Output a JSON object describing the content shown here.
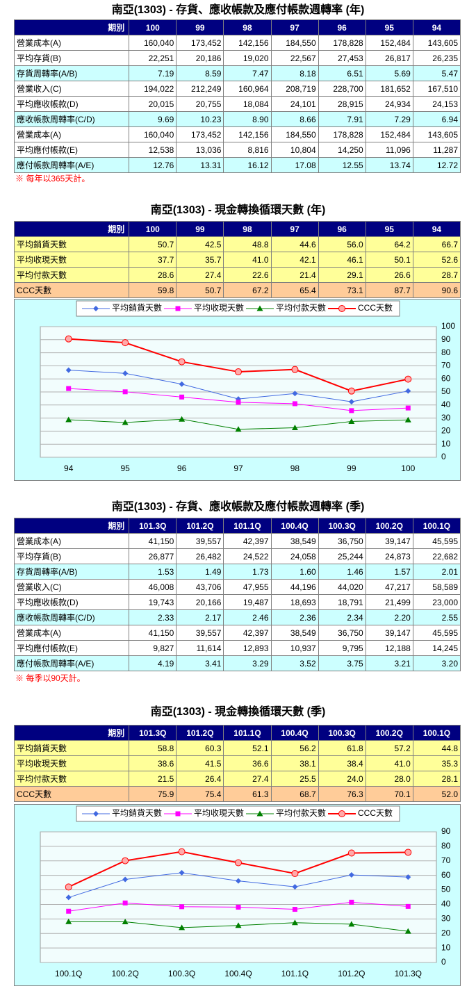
{
  "sections": [
    {
      "title": "南亞(1303) - 存貨、應收帳款及應付帳款週轉率 (年)",
      "table": {
        "header_color": "#000080",
        "header": [
          "期別",
          "100",
          "99",
          "98",
          "97",
          "96",
          "95",
          "94"
        ],
        "rows": [
          {
            "label": "營業成本(A)",
            "color": "#ffffff",
            "cells": [
              "160,040",
              "173,452",
              "142,156",
              "184,550",
              "178,828",
              "152,484",
              "143,605"
            ]
          },
          {
            "label": "平均存貨(B)",
            "color": "#ffffff",
            "cells": [
              "22,251",
              "20,186",
              "19,020",
              "22,567",
              "27,453",
              "26,817",
              "26,235"
            ]
          },
          {
            "label": "存貨周轉率(A/B)",
            "color": "#ccffff",
            "cells": [
              "7.19",
              "8.59",
              "7.47",
              "8.18",
              "6.51",
              "5.69",
              "5.47"
            ]
          },
          {
            "label": "營業收入(C)",
            "color": "#ffffff",
            "cells": [
              "194,022",
              "212,249",
              "160,964",
              "208,719",
              "228,700",
              "181,652",
              "167,510"
            ]
          },
          {
            "label": "平均應收帳款(D)",
            "color": "#ffffff",
            "cells": [
              "20,015",
              "20,755",
              "18,084",
              "24,101",
              "28,915",
              "24,934",
              "24,153"
            ]
          },
          {
            "label": "應收帳款周轉率(C/D)",
            "color": "#ccffff",
            "cells": [
              "9.69",
              "10.23",
              "8.90",
              "8.66",
              "7.91",
              "7.29",
              "6.94"
            ]
          },
          {
            "label": "營業成本(A)",
            "color": "#ffffff",
            "cells": [
              "160,040",
              "173,452",
              "142,156",
              "184,550",
              "178,828",
              "152,484",
              "143,605"
            ]
          },
          {
            "label": "平均應付帳款(E)",
            "color": "#ffffff",
            "cells": [
              "12,538",
              "13,036",
              "8,816",
              "10,804",
              "14,250",
              "11,096",
              "11,287"
            ]
          },
          {
            "label": "應付帳款周轉率(A/E)",
            "color": "#ccffff",
            "cells": [
              "12.76",
              "13.31",
              "16.12",
              "17.08",
              "12.55",
              "13.74",
              "12.72"
            ]
          }
        ]
      },
      "note": "※ 每年以365天計。"
    },
    {
      "title": "南亞(1303) - 現金轉換循環天數 (年)",
      "table": {
        "header_color": "#000080",
        "header": [
          "期別",
          "100",
          "99",
          "98",
          "97",
          "96",
          "95",
          "94"
        ],
        "rows": [
          {
            "label": "平均銷貨天數",
            "color": "#ffff99",
            "cells": [
              "50.7",
              "42.5",
              "48.8",
              "44.6",
              "56.0",
              "64.2",
              "66.7"
            ]
          },
          {
            "label": "平均收現天數",
            "color": "#ffff99",
            "cells": [
              "37.7",
              "35.7",
              "41.0",
              "42.1",
              "46.1",
              "50.1",
              "52.6"
            ]
          },
          {
            "label": "平均付款天數",
            "color": "#ffff99",
            "cells": [
              "28.6",
              "27.4",
              "22.6",
              "21.4",
              "29.1",
              "26.6",
              "28.7"
            ]
          },
          {
            "label": "CCC天數",
            "color": "#ffcc99",
            "cells": [
              "59.8",
              "50.7",
              "67.2",
              "65.4",
              "73.1",
              "87.7",
              "90.6"
            ]
          }
        ]
      }
    },
    {
      "title": "南亞(1303) - 存貨、應收帳款及應付帳款週轉率 (季)",
      "table": {
        "header_color": "#000080",
        "header": [
          "期別",
          "101.3Q",
          "101.2Q",
          "101.1Q",
          "100.4Q",
          "100.3Q",
          "100.2Q",
          "100.1Q"
        ],
        "rows": [
          {
            "label": "營業成本(A)",
            "color": "#ffffff",
            "cells": [
              "41,150",
              "39,557",
              "42,397",
              "38,549",
              "36,750",
              "39,147",
              "45,595"
            ]
          },
          {
            "label": "平均存貨(B)",
            "color": "#ffffff",
            "cells": [
              "26,877",
              "26,482",
              "24,522",
              "24,058",
              "25,244",
              "24,873",
              "22,682"
            ]
          },
          {
            "label": "存貨周轉率(A/B)",
            "color": "#ccffff",
            "cells": [
              "1.53",
              "1.49",
              "1.73",
              "1.60",
              "1.46",
              "1.57",
              "2.01"
            ]
          },
          {
            "label": "營業收入(C)",
            "color": "#ffffff",
            "cells": [
              "46,008",
              "43,706",
              "47,955",
              "44,196",
              "44,020",
              "47,217",
              "58,589"
            ]
          },
          {
            "label": "平均應收帳款(D)",
            "color": "#ffffff",
            "cells": [
              "19,743",
              "20,166",
              "19,487",
              "18,693",
              "18,791",
              "21,499",
              "23,000"
            ]
          },
          {
            "label": "應收帳款周轉率(C/D)",
            "color": "#ccffff",
            "cells": [
              "2.33",
              "2.17",
              "2.46",
              "2.36",
              "2.34",
              "2.20",
              "2.55"
            ]
          },
          {
            "label": "營業成本(A)",
            "color": "#ffffff",
            "cells": [
              "41,150",
              "39,557",
              "42,397",
              "38,549",
              "36,750",
              "39,147",
              "45,595"
            ]
          },
          {
            "label": "平均應付帳款(E)",
            "color": "#ffffff",
            "cells": [
              "9,827",
              "11,614",
              "12,893",
              "10,937",
              "9,795",
              "12,188",
              "14,245"
            ]
          },
          {
            "label": "應付帳款周轉率(A/E)",
            "color": "#ccffff",
            "cells": [
              "4.19",
              "3.41",
              "3.29",
              "3.52",
              "3.75",
              "3.21",
              "3.20"
            ]
          }
        ]
      },
      "note": "※ 每季以90天計。"
    },
    {
      "title": "南亞(1303) - 現金轉換循環天數 (季)",
      "table": {
        "header_color": "#000080",
        "header": [
          "期別",
          "101.3Q",
          "101.2Q",
          "101.1Q",
          "100.4Q",
          "100.3Q",
          "100.2Q",
          "100.1Q"
        ],
        "rows": [
          {
            "label": "平均銷貨天數",
            "color": "#ffff99",
            "cells": [
              "58.8",
              "60.3",
              "52.1",
              "56.2",
              "61.8",
              "57.2",
              "44.8"
            ]
          },
          {
            "label": "平均收現天數",
            "color": "#ffff99",
            "cells": [
              "38.6",
              "41.5",
              "36.6",
              "38.1",
              "38.4",
              "41.0",
              "35.3"
            ]
          },
          {
            "label": "平均付款天數",
            "color": "#ffff99",
            "cells": [
              "21.5",
              "26.4",
              "27.4",
              "25.5",
              "24.0",
              "28.0",
              "28.1"
            ]
          },
          {
            "label": "CCC天數",
            "color": "#ffcc99",
            "cells": [
              "75.9",
              "75.4",
              "61.3",
              "68.7",
              "76.3",
              "70.1",
              "52.0"
            ]
          }
        ]
      }
    }
  ],
  "chart_data": [
    {
      "type": "line",
      "legend": "top",
      "grid": true,
      "categories": [
        "94",
        "95",
        "96",
        "97",
        "98",
        "99",
        "100"
      ],
      "ylim": [
        0,
        100
      ],
      "yticks": [
        0,
        10,
        20,
        30,
        40,
        50,
        60,
        70,
        80,
        90,
        100
      ],
      "series": [
        {
          "name": "平均銷貨天數",
          "color": "#4169e1",
          "marker": "diamond",
          "values": [
            66.7,
            64.2,
            56.0,
            44.6,
            48.8,
            42.5,
            50.7
          ]
        },
        {
          "name": "平均收現天數",
          "color": "#ff00ff",
          "marker": "square",
          "values": [
            52.6,
            50.1,
            46.1,
            42.1,
            41.0,
            35.7,
            37.7
          ]
        },
        {
          "name": "平均付款天數",
          "color": "#008000",
          "marker": "triangle",
          "values": [
            28.7,
            26.6,
            29.1,
            21.4,
            22.6,
            27.4,
            28.6
          ]
        },
        {
          "name": "CCC天數",
          "color": "#ff0000",
          "marker": "circle",
          "values": [
            90.6,
            87.7,
            73.1,
            65.4,
            67.2,
            50.7,
            59.8
          ]
        }
      ]
    },
    {
      "type": "line",
      "legend": "top",
      "grid": true,
      "categories": [
        "100.1Q",
        "100.2Q",
        "100.3Q",
        "100.4Q",
        "101.1Q",
        "101.2Q",
        "101.3Q"
      ],
      "ylim": [
        0,
        90
      ],
      "yticks": [
        0,
        10,
        20,
        30,
        40,
        50,
        60,
        70,
        80,
        90
      ],
      "series": [
        {
          "name": "平均銷貨天數",
          "color": "#4169e1",
          "marker": "diamond",
          "values": [
            44.8,
            57.2,
            61.8,
            56.2,
            52.1,
            60.3,
            58.8
          ]
        },
        {
          "name": "平均收現天數",
          "color": "#ff00ff",
          "marker": "square",
          "values": [
            35.3,
            41.0,
            38.4,
            38.1,
            36.6,
            41.5,
            38.6
          ]
        },
        {
          "name": "平均付款天數",
          "color": "#008000",
          "marker": "triangle",
          "values": [
            28.1,
            28.0,
            24.0,
            25.5,
            27.4,
            26.4,
            21.5
          ]
        },
        {
          "name": "CCC天數",
          "color": "#ff0000",
          "marker": "circle",
          "values": [
            52.0,
            70.1,
            76.3,
            68.7,
            61.3,
            75.4,
            75.9
          ]
        }
      ]
    }
  ]
}
